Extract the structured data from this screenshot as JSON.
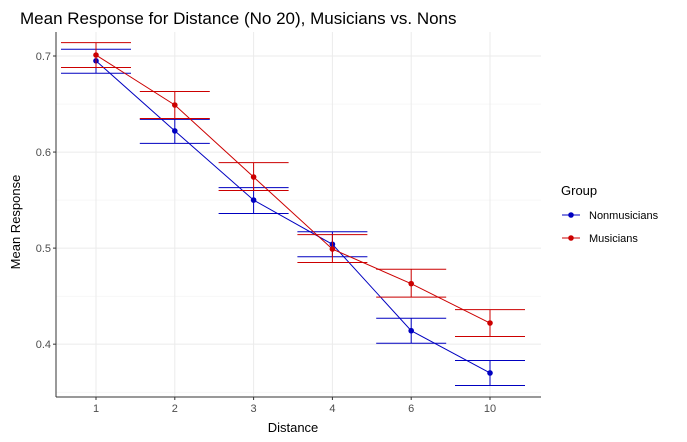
{
  "chart_data": {
    "type": "line",
    "title": "Mean Response for Distance (No 20), Musicians vs. Nons",
    "xlabel": "Distance",
    "ylabel": "Mean Response",
    "categories": [
      "1",
      "2",
      "3",
      "4",
      "6",
      "10"
    ],
    "yticks": [
      "0.4",
      "0.5",
      "0.6",
      "0.7"
    ],
    "ylim": [
      0.345,
      0.725
    ],
    "grid": true,
    "legend": {
      "title": "Group",
      "placement": "right",
      "entries": [
        "Nonmusicians",
        "Musicians"
      ]
    },
    "series": [
      {
        "name": "Nonmusicians",
        "color": "#0000c0",
        "values": [
          0.695,
          0.622,
          0.55,
          0.504,
          0.414,
          0.37
        ],
        "error_low": [
          0.682,
          0.609,
          0.536,
          0.491,
          0.401,
          0.357
        ],
        "error_high": [
          0.707,
          0.634,
          0.563,
          0.517,
          0.427,
          0.383
        ]
      },
      {
        "name": "Musicians",
        "color": "#cc0000",
        "values": [
          0.701,
          0.649,
          0.574,
          0.499,
          0.463,
          0.422
        ],
        "error_low": [
          0.688,
          0.635,
          0.56,
          0.485,
          0.449,
          0.408
        ],
        "error_high": [
          0.714,
          0.663,
          0.589,
          0.514,
          0.478,
          0.436
        ]
      }
    ]
  }
}
